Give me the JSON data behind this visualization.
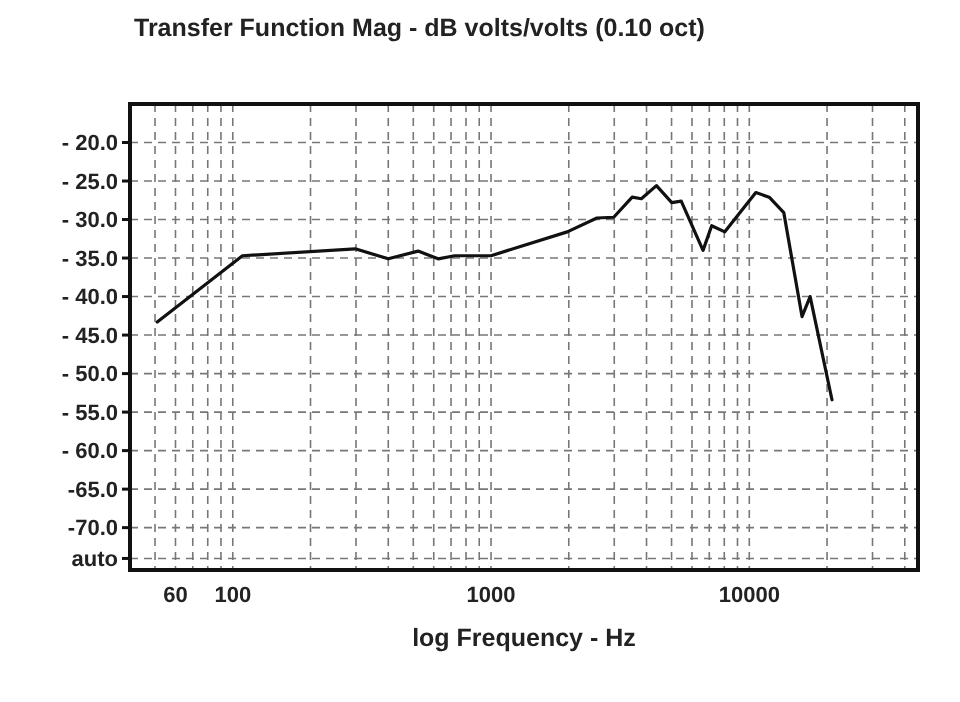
{
  "chart_data": {
    "type": "line",
    "title": "Transfer Function Mag - dB volts/volts (0.10 oct)",
    "xlabel": "log Frequency - Hz",
    "log": "x",
    "grid": true,
    "color": "#111111",
    "x": [
      51,
      109,
      298,
      400,
      522,
      624,
      723,
      1000,
      1973,
      2570,
      2985,
      3520,
      3820,
      4370,
      5010,
      5450,
      6620,
      7150,
      8040,
      10600,
      11940,
      13600,
      16000,
      17200,
      20900
    ],
    "values": [
      -43.3,
      -34.7,
      -33.8,
      -35.1,
      -34.1,
      -35.1,
      -34.7,
      -34.7,
      -31.6,
      -29.8,
      -29.7,
      -27.1,
      -27.3,
      -25.6,
      -27.8,
      -27.6,
      -34.0,
      -30.8,
      -31.6,
      -26.5,
      -27.1,
      -29.1,
      -42.6,
      -40.0,
      -53.4
    ],
    "xlim": [
      40,
      45000
    ],
    "xticks": [
      60,
      100,
      1000,
      10000
    ],
    "ylim": [
      -75.5,
      -15
    ],
    "yticks": [
      {
        "value": -20,
        "label": "- 20.0"
      },
      {
        "value": -25,
        "label": "- 25.0"
      },
      {
        "value": -30,
        "label": "- 30.0"
      },
      {
        "value": -35,
        "label": "- 35.0"
      },
      {
        "value": -40,
        "label": "- 40.0"
      },
      {
        "value": -45,
        "label": "- 45.0"
      },
      {
        "value": -50,
        "label": "- 50.0"
      },
      {
        "value": -55,
        "label": "- 55.0"
      },
      {
        "value": -60,
        "label": "- 60.0"
      },
      {
        "value": -65,
        "label": "-65.0"
      },
      {
        "value": -70,
        "label": "-70.0"
      },
      {
        "value": -74,
        "label": "auto"
      }
    ]
  }
}
